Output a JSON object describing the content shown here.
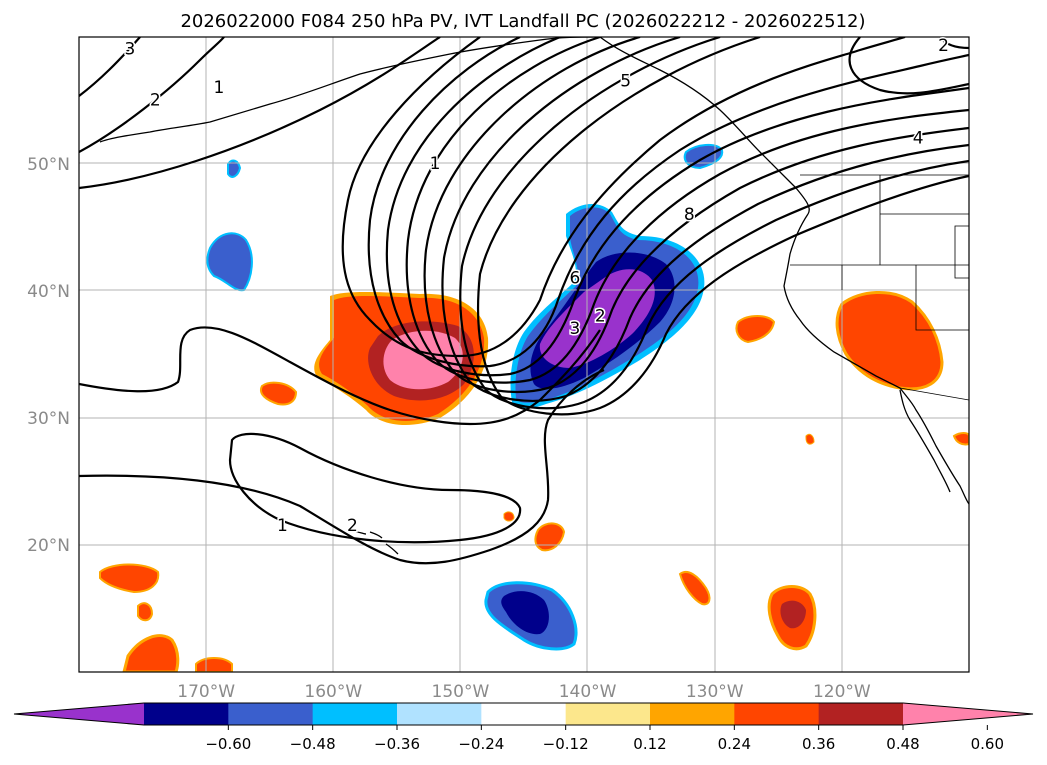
{
  "title": "2026022000 F084 250 hPa PV, IVT Landfall PC (2026022212 - 2026022512)",
  "map": {
    "lon_range": [
      -180,
      -110
    ],
    "lat_range": [
      10,
      60
    ],
    "lon_ticks": [
      {
        "value": -170,
        "label": "170°W"
      },
      {
        "value": -160,
        "label": "160°W"
      },
      {
        "value": -150,
        "label": "150°W"
      },
      {
        "value": -140,
        "label": "140°W"
      },
      {
        "value": -130,
        "label": "130°W"
      },
      {
        "value": -120,
        "label": "120°W"
      }
    ],
    "lat_ticks": [
      {
        "value": 20,
        "label": "20°N"
      },
      {
        "value": 30,
        "label": "30°N"
      },
      {
        "value": 40,
        "label": "40°N"
      },
      {
        "value": 50,
        "label": "50°N"
      }
    ],
    "grid": true,
    "contour_labels": [
      {
        "text": "3",
        "lon": -176,
        "lat": 59
      },
      {
        "text": "2",
        "lon": -174,
        "lat": 55
      },
      {
        "text": "1",
        "lon": -169,
        "lat": 56
      },
      {
        "text": "1",
        "lon": -152,
        "lat": 50
      },
      {
        "text": "5",
        "lon": -137,
        "lat": 56.5
      },
      {
        "text": "8",
        "lon": -132,
        "lat": 46
      },
      {
        "text": "4",
        "lon": -114,
        "lat": 52
      },
      {
        "text": "2",
        "lon": -112,
        "lat": 59.3
      },
      {
        "text": "3",
        "lon": -141,
        "lat": 37
      },
      {
        "text": "2",
        "lon": -139,
        "lat": 38
      },
      {
        "text": "6",
        "lon": -141,
        "lat": 41
      },
      {
        "text": "1",
        "lon": -164,
        "lat": 21.5
      },
      {
        "text": "2",
        "lon": -158.5,
        "lat": 21.5
      }
    ]
  },
  "colorbar": {
    "ticks": [
      "−0.60",
      "−0.48",
      "−0.36",
      "−0.24",
      "−0.12",
      "0.12",
      "0.24",
      "0.36",
      "0.48",
      "0.60"
    ],
    "colors": [
      "#9932cc",
      "#00008b",
      "#3a5fcd",
      "#00bfff",
      "#b0e2ff",
      "#ffffff",
      "#fce78c",
      "#ffa500",
      "#ff4500",
      "#b22222",
      "#ff82ab"
    ],
    "extend": "both"
  }
}
